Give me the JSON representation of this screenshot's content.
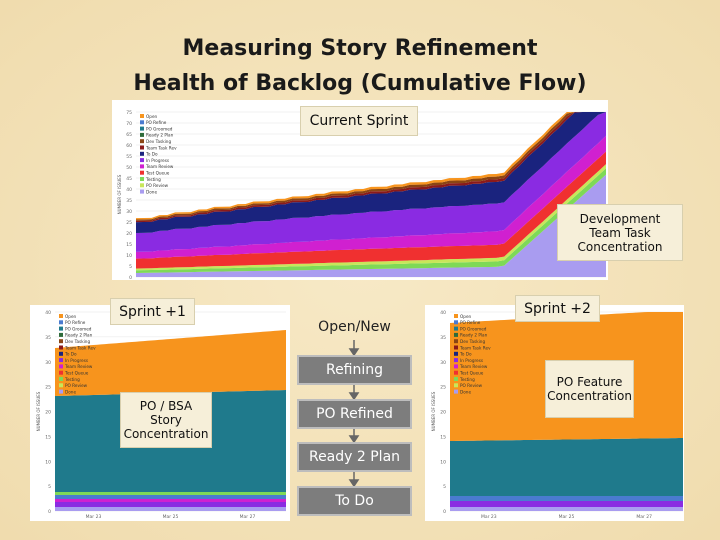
{
  "title": [
    "Measuring Story Refinement",
    "Health of Backlog (Cumulative Flow)"
  ],
  "flow": [
    "Open/New",
    "Refining",
    "PO Refined",
    "Ready 2 Plan",
    "To Do"
  ],
  "callouts": [
    "Current Sprint",
    "Development Team Task Concentration",
    "Sprint +1",
    "PO / BSA Story Concentration",
    "Sprint +2",
    "PO Feature Concentration"
  ],
  "legend": [
    "Open",
    "PO Refine",
    "PO Groomed",
    "Ready 2 Plan",
    "Dev Tasking",
    "Team Task Rev",
    "To Do",
    "In Progress",
    "Team Review",
    "Test Queue",
    "Testing",
    "PO Review",
    "Done"
  ],
  "legend_colors": [
    "#f7941d",
    "#4a7bd0",
    "#1f7a8c",
    "#2e6b3a",
    "#8b4513",
    "#8b1a1a",
    "#1a237e",
    "#8a2be2",
    "#d020d0",
    "#f03030",
    "#7ed957",
    "#c8e65a",
    "#a99cf0"
  ],
  "axis_label": "NUMBER OF ISSUES",
  "charts": [
    {
      "yticks": [
        0,
        5,
        10,
        15,
        20,
        25,
        30,
        35,
        40,
        45,
        50,
        55,
        60,
        65,
        70,
        75
      ]
    },
    {
      "yticks": [
        0,
        5,
        10,
        15,
        20,
        25,
        30,
        35,
        40
      ],
      "xticks": [
        "Mar 23",
        "Mar 25",
        "Mar 27"
      ]
    },
    {
      "yticks": [
        0,
        5,
        10,
        15,
        20,
        25,
        30,
        35,
        40
      ],
      "xticks": [
        "Mar 23",
        "Mar 25",
        "Mar 27"
      ]
    }
  ]
}
